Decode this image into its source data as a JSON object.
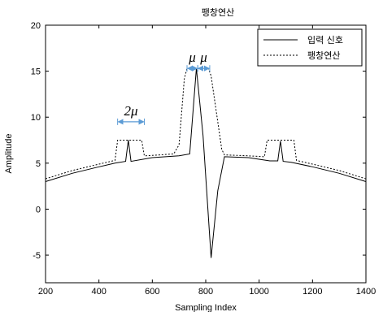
{
  "chart_data": {
    "type": "line",
    "title": "팽창연산",
    "xlabel": "Sampling Index",
    "ylabel": "Amplitude",
    "xlim": [
      200,
      1400
    ],
    "ylim": [
      -8,
      20
    ],
    "xticks": [
      200,
      400,
      600,
      800,
      1000,
      1200,
      1400
    ],
    "yticks": [
      -5,
      0,
      5,
      10,
      15,
      20
    ],
    "grid": false,
    "legend_position": "top-right",
    "series": [
      {
        "name": "입력 신호",
        "style": "solid",
        "color": "#000000",
        "x": [
          200,
          300,
          400,
          460,
          500,
          510,
          520,
          600,
          700,
          740,
          765,
          790,
          820,
          845,
          870,
          960,
          1040,
          1070,
          1080,
          1090,
          1120,
          1200,
          1300,
          1400
        ],
        "y": [
          3.0,
          3.9,
          4.6,
          5.0,
          5.2,
          7.5,
          5.2,
          5.6,
          5.8,
          6.0,
          15.3,
          8.0,
          -5.3,
          2.0,
          5.7,
          5.6,
          5.25,
          5.25,
          7.4,
          5.2,
          5.1,
          4.6,
          3.9,
          3.0
        ]
      },
      {
        "name": "팽창연산",
        "style": "dashed",
        "color": "#000000",
        "x": [
          200,
          300,
          400,
          460,
          470,
          560,
          570,
          680,
          700,
          720,
          730,
          810,
          820,
          860,
          870,
          960,
          1020,
          1030,
          1130,
          1140,
          1200,
          1300,
          1400
        ],
        "y": [
          3.3,
          4.2,
          4.9,
          5.3,
          7.5,
          7.5,
          5.8,
          6.0,
          7.0,
          14.2,
          15.3,
          15.3,
          14.5,
          6.5,
          5.9,
          5.8,
          5.7,
          7.5,
          7.5,
          5.3,
          4.9,
          4.2,
          3.3
        ]
      }
    ],
    "annotations": [
      {
        "text": "2μ",
        "x_start": 470,
        "x_end": 570,
        "y": 9.5
      },
      {
        "text": "μ",
        "x_start": 730,
        "x_end": 770,
        "y": 15.3
      },
      {
        "text": "μ",
        "x_start": 770,
        "x_end": 815,
        "y": 15.3
      }
    ],
    "annotation_color": "#5b9bd5"
  }
}
